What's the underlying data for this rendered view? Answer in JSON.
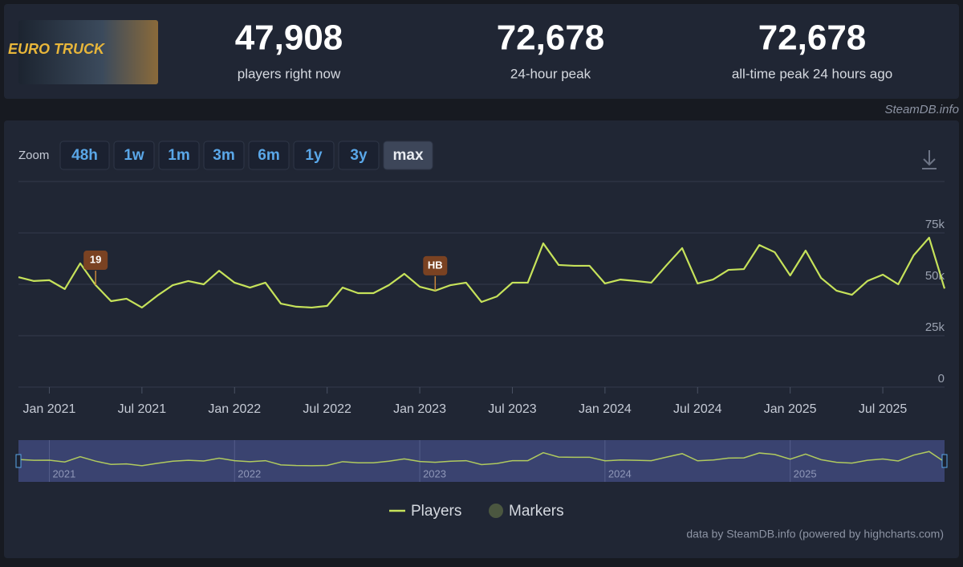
{
  "header": {
    "logo_text": "EURO TRUCK",
    "stats": [
      {
        "value": "47,908",
        "label": "players right now"
      },
      {
        "value": "72,678",
        "label": "24-hour peak"
      },
      {
        "value": "72,678",
        "label": "all-time peak 24 hours ago"
      }
    ],
    "source": "SteamDB.info"
  },
  "zoom": {
    "label": "Zoom",
    "options": [
      "48h",
      "1w",
      "1m",
      "3m",
      "6m",
      "1y",
      "3y",
      "max"
    ],
    "active": "max"
  },
  "chart_data": {
    "type": "line",
    "x": [
      "2020-11",
      "2020-12",
      "2021-01",
      "2021-02",
      "2021-03",
      "2021-04",
      "2021-05",
      "2021-06",
      "2021-07",
      "2021-08",
      "2021-09",
      "2021-10",
      "2021-11",
      "2021-12",
      "2022-01",
      "2022-02",
      "2022-03",
      "2022-04",
      "2022-05",
      "2022-06",
      "2022-07",
      "2022-08",
      "2022-09",
      "2022-10",
      "2022-11",
      "2022-12",
      "2023-01",
      "2023-02",
      "2023-03",
      "2023-04",
      "2023-05",
      "2023-06",
      "2023-07",
      "2023-08",
      "2023-09",
      "2023-10",
      "2023-11",
      "2023-12",
      "2024-01",
      "2024-02",
      "2024-03",
      "2024-04",
      "2024-05",
      "2024-06",
      "2024-07",
      "2024-08",
      "2024-09",
      "2024-10",
      "2024-11",
      "2024-12",
      "2025-01",
      "2025-02",
      "2025-03",
      "2025-04",
      "2025-05",
      "2025-06",
      "2025-07",
      "2025-08",
      "2025-09",
      "2025-10",
      "2025-11"
    ],
    "series": [
      {
        "name": "Players",
        "color": "#c6e25a",
        "values": [
          53500,
          51600,
          52000,
          47700,
          60200,
          49600,
          41800,
          43000,
          38700,
          44500,
          49600,
          51600,
          50000,
          56600,
          50800,
          48400,
          50800,
          40600,
          39100,
          38700,
          39500,
          48400,
          45700,
          45700,
          49600,
          55100,
          48800,
          46900,
          49600,
          50800,
          41400,
          44100,
          50800,
          50800,
          69900,
          59400,
          59000,
          59000,
          50400,
          52300,
          51600,
          50800,
          59400,
          67600,
          50400,
          52300,
          57000,
          57400,
          69100,
          65600,
          54300,
          66400,
          53100,
          46900,
          44900,
          51600,
          54700,
          50000,
          64100,
          72678,
          47908
        ]
      }
    ],
    "xlim": [
      "2020-11",
      "2025-11"
    ],
    "xticks": [
      {
        "value": "2021-01",
        "label": "Jan 2021"
      },
      {
        "value": "2021-07",
        "label": "Jul 2021"
      },
      {
        "value": "2022-01",
        "label": "Jan 2022"
      },
      {
        "value": "2022-07",
        "label": "Jul 2022"
      },
      {
        "value": "2023-01",
        "label": "Jan 2023"
      },
      {
        "value": "2023-07",
        "label": "Jul 2023"
      },
      {
        "value": "2024-01",
        "label": "Jan 2024"
      },
      {
        "value": "2024-07",
        "label": "Jul 2024"
      },
      {
        "value": "2025-01",
        "label": "Jan 2025"
      },
      {
        "value": "2025-07",
        "label": "Jul 2025"
      }
    ],
    "ylim": [
      0,
      100000
    ],
    "yticks": [
      0,
      {
        "value": 25000,
        "label": "25k"
      },
      {
        "value": 50000,
        "label": "50k"
      },
      {
        "value": 75000,
        "label": "75k"
      }
    ],
    "grid": true,
    "annotations": [
      {
        "x": "2021-04",
        "label": "19"
      },
      {
        "x": "2023-02",
        "label": "HB"
      }
    ],
    "navigator_labels": [
      {
        "value": "2021-01",
        "label": "2021"
      },
      {
        "value": "2022-01",
        "label": "2022"
      },
      {
        "value": "2023-01",
        "label": "2023"
      },
      {
        "value": "2024-01",
        "label": "2024"
      },
      {
        "value": "2025-01",
        "label": "2025"
      }
    ],
    "legend": [
      "Players",
      "Markers"
    ],
    "marker_color": "#4b5740",
    "credits": "data by SteamDB.info (powered by highcharts.com)"
  }
}
